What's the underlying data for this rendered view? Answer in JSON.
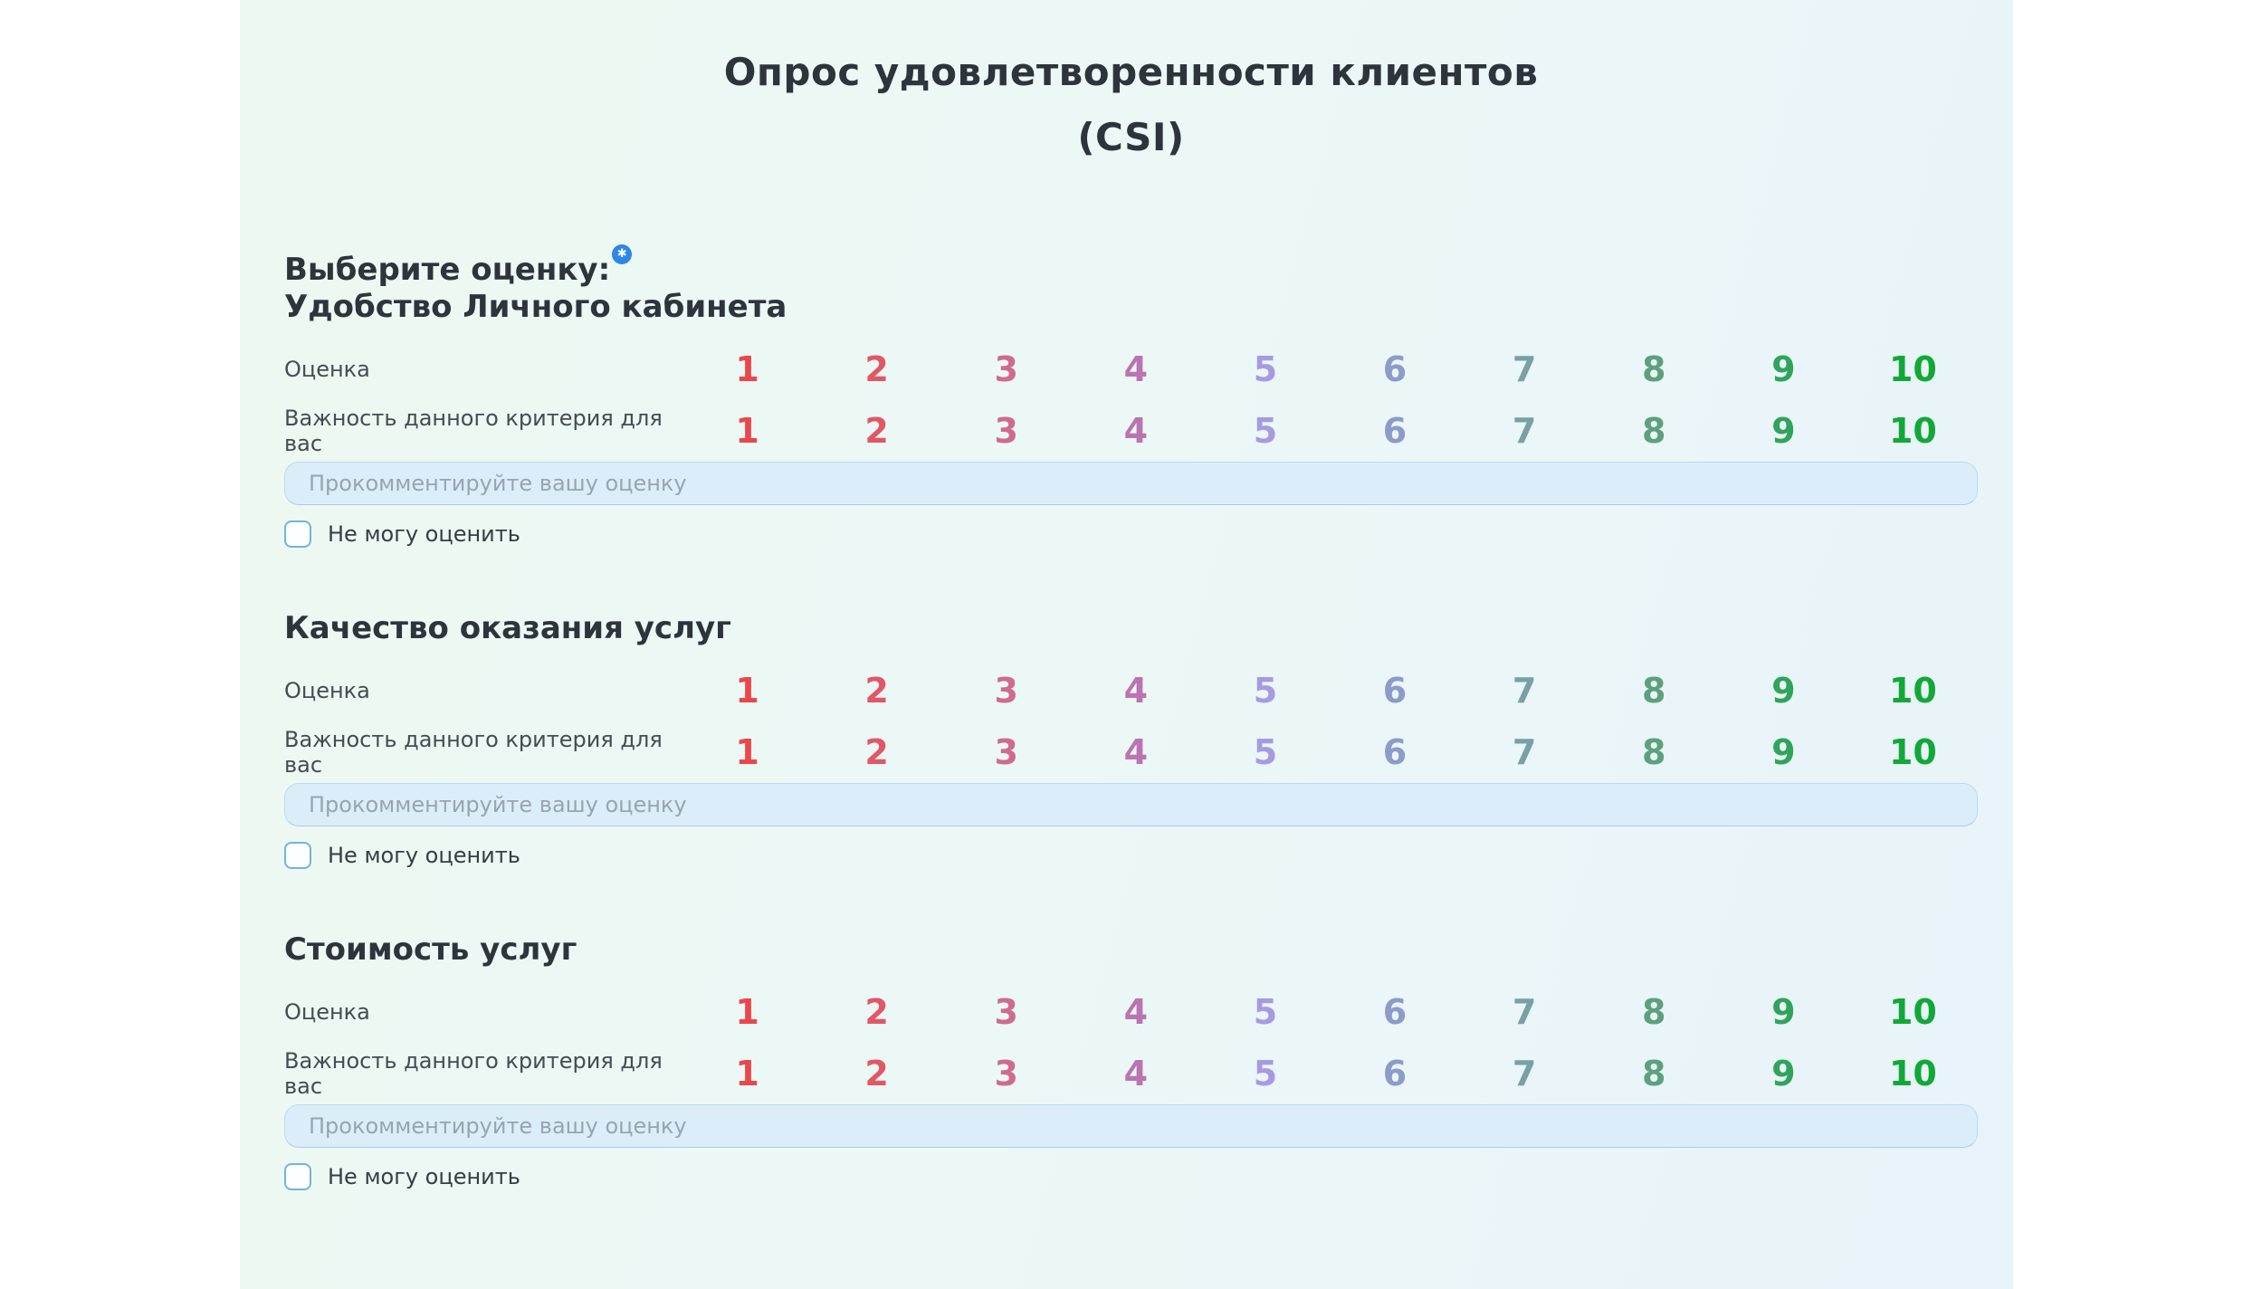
{
  "page": {
    "title_line1": "Опрос удовлетворенности клиентов",
    "title_line2": "(CSI)"
  },
  "prompt": {
    "label": "Выберите оценку:",
    "required_icon": "asterisk-icon",
    "required_glyph": "✱"
  },
  "scale": {
    "values": [
      "1",
      "2",
      "3",
      "4",
      "5",
      "6",
      "7",
      "8",
      "9",
      "10"
    ],
    "colors": [
      "#ea474d",
      "#e25666",
      "#cf6b8c",
      "#bb73b2",
      "#a79ae2",
      "#8c9bc8",
      "#78a0a6",
      "#5ca17c",
      "#2fa45a",
      "#12a837"
    ]
  },
  "section_template": {
    "score_label": "Оценка",
    "importance_label": "Важность данного критерия для вас",
    "comment_placeholder": "Прокомментируйте вашу оценку",
    "cannot_rate_label": "Не могу оценить"
  },
  "sections": [
    {
      "title": "Удобство Личного кабинета"
    },
    {
      "title": "Качество оказания услуг"
    },
    {
      "title": "Стоимость услуг"
    }
  ],
  "theme": {
    "page_bg": "#ffffff",
    "panel_bg_left": "#edf8f0",
    "panel_bg_right": "#e7f3f9",
    "accent_blue": "#2e86e8",
    "input_bg": "#dcedfa",
    "input_border": "#b9dcf0",
    "checkbox_border": "#74b3da",
    "text_dark": "#2d343c",
    "text_label": "#454c53",
    "placeholder_color": "#98a5ae"
  }
}
